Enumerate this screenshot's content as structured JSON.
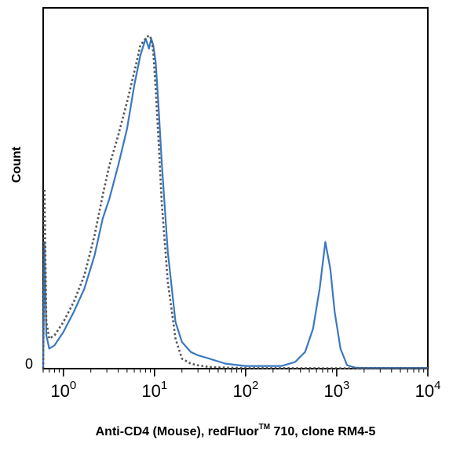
{
  "chart_data": {
    "type": "line",
    "xlabel": "Anti-CD4 (Mouse), redFluor",
    "xlabel_tm": "TM",
    "xlabel_rest": " 710, clone RM4-5",
    "ylabel": "Count",
    "y_zero_label": "0",
    "x_scale": "log",
    "xlim": [
      0.6,
      10000
    ],
    "ylim": [
      0,
      100
    ],
    "grid": false,
    "x_ticks": [
      {
        "base": "10",
        "exp": "0",
        "value": 1
      },
      {
        "base": "10",
        "exp": "1",
        "value": 10
      },
      {
        "base": "10",
        "exp": "2",
        "value": 100
      },
      {
        "base": "10",
        "exp": "3",
        "value": 1000
      },
      {
        "base": "10",
        "exp": "4",
        "value": 10000
      }
    ],
    "series": [
      {
        "style": "solid",
        "color": "#3a78c2",
        "x": [
          0.6,
          0.62,
          0.65,
          0.7,
          0.8,
          1.0,
          1.3,
          1.7,
          2.2,
          2.7,
          3.2,
          4.0,
          5.0,
          6.0,
          7.0,
          8.0,
          8.7,
          9.2,
          9.7,
          10.3,
          11.0,
          12.0,
          14.0,
          17.0,
          20.0,
          25.0,
          30.0,
          40.0,
          60.0,
          100.0,
          150.0,
          250.0,
          350.0,
          450.0,
          550.0,
          650.0,
          750.0,
          850.0,
          950.0,
          1100.0,
          1300.0,
          1600.0,
          2000.0,
          3000.0,
          5000.0,
          10000.0
        ],
        "y": [
          0,
          38,
          10,
          6,
          7,
          11,
          17,
          24,
          34,
          45,
          51,
          61,
          72,
          85,
          94,
          99,
          96,
          99,
          97,
          92,
          80,
          62,
          35,
          14,
          8,
          5,
          4,
          3,
          1.5,
          0.8,
          0.8,
          0.8,
          2,
          5,
          12,
          24,
          38,
          30,
          17,
          6,
          1,
          0.3,
          0.2,
          0.2,
          0.2,
          0.2
        ]
      },
      {
        "style": "dotted",
        "color": "#555555",
        "x": [
          0.6,
          0.62,
          0.65,
          0.7,
          0.8,
          1.0,
          1.3,
          1.7,
          2.2,
          2.7,
          3.2,
          4.0,
          5.0,
          6.0,
          7.0,
          8.0,
          8.7,
          9.2,
          9.7,
          10.3,
          11.0,
          12.0,
          14.0,
          17.0,
          20.0,
          25.0,
          30.0,
          40.0,
          60.0,
          100.0,
          1000.0,
          10000.0
        ],
        "y": [
          0,
          54,
          14,
          9,
          10,
          14,
          20,
          28,
          40,
          52,
          61,
          70,
          80,
          89,
          97,
          99,
          100,
          99,
          95,
          84,
          70,
          50,
          26,
          9,
          3,
          1.5,
          1,
          0.5,
          0.3,
          0.2,
          0.1,
          0.1
        ]
      }
    ]
  }
}
